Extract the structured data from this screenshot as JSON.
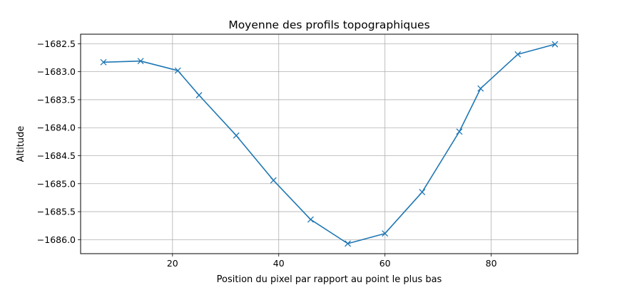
{
  "chart_data": {
    "type": "line",
    "title": "Moyenne des profils topographiques",
    "xlabel": "Position du pixel par rapport au point le plus bas",
    "ylabel": "Altitude",
    "xlim": [
      2.7,
      96.3
    ],
    "ylim": [
      -1686.25,
      -1682.33
    ],
    "xticks": [
      20,
      40,
      60,
      80
    ],
    "yticks": [
      -1682.5,
      -1683.0,
      -1683.5,
      -1684.0,
      -1684.5,
      -1685.0,
      -1685.5,
      -1686.0
    ],
    "ytick_labels": [
      "−1682.5",
      "−1683.0",
      "−1683.5",
      "−1684.0",
      "−1684.5",
      "−1685.0",
      "−1685.5",
      "−1686.0"
    ],
    "grid": true,
    "marker": "x",
    "color": "#1f77b4",
    "series": [
      {
        "x": [
          7,
          14,
          21,
          25,
          32,
          39,
          46,
          53,
          60,
          67,
          74,
          78,
          85,
          92
        ],
        "y": [
          -1682.83,
          -1682.81,
          -1682.98,
          -1683.42,
          -1684.14,
          -1684.94,
          -1685.64,
          -1686.07,
          -1685.89,
          -1685.15,
          -1684.07,
          -1683.3,
          -1682.69,
          -1682.51
        ]
      }
    ]
  }
}
